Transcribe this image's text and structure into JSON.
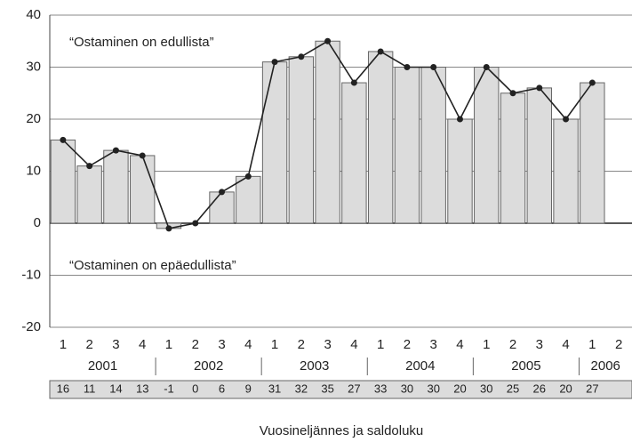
{
  "chart_data": {
    "type": "bar",
    "line_overlay": true,
    "annotations": [
      "“Ostaminen on edullista”",
      "“Ostaminen on epäedullista”"
    ],
    "x_label": "Vuosineljännes ja saldoluku",
    "categories": [
      "1",
      "2",
      "3",
      "4",
      "1",
      "2",
      "3",
      "4",
      "1",
      "2",
      "3",
      "4",
      "1",
      "2",
      "3",
      "4",
      "1",
      "2",
      "3",
      "4",
      "1",
      "2"
    ],
    "years": [
      "2001",
      "2002",
      "2003",
      "2004",
      "2005",
      "2006"
    ],
    "values": [
      16,
      11,
      14,
      13,
      -1,
      0,
      6,
      9,
      31,
      32,
      35,
      27,
      33,
      30,
      30,
      20,
      30,
      25,
      26,
      20,
      27,
      null
    ],
    "color": "#dcdcdc",
    "line_color": "#222222",
    "ylim": [
      -20,
      40
    ],
    "yticks": [
      -20,
      -10,
      0,
      10,
      20,
      30,
      40
    ],
    "grid": true
  }
}
